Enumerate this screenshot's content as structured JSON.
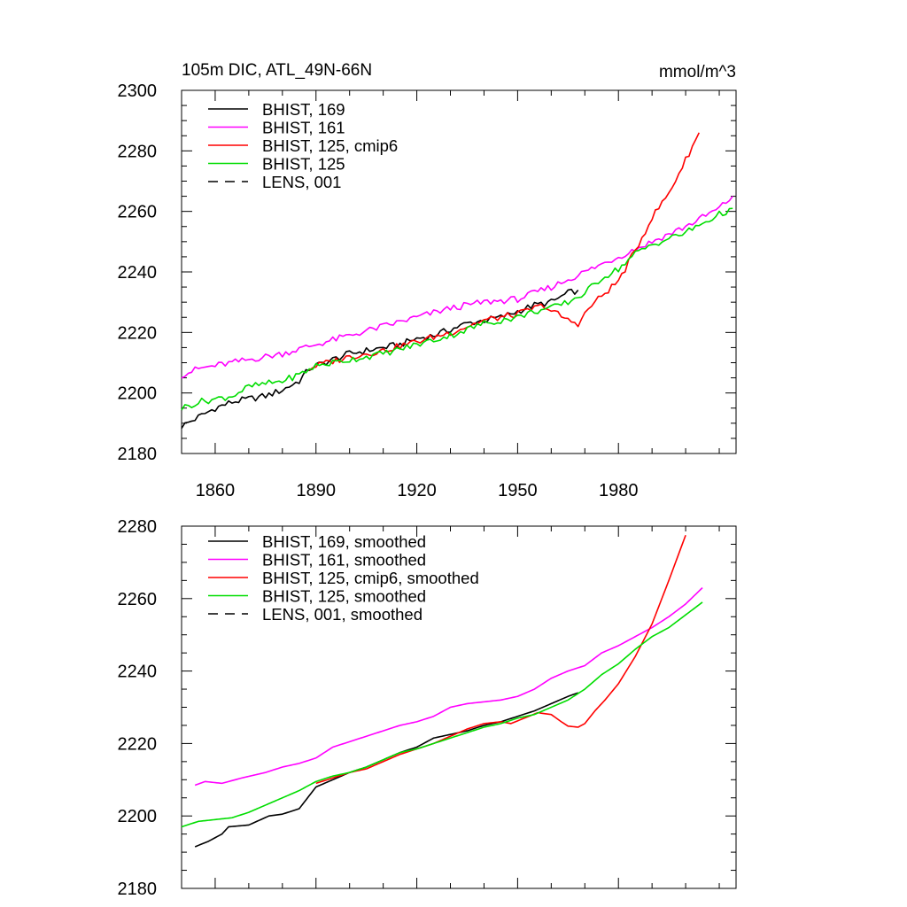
{
  "chart_data": [
    {
      "type": "line",
      "title": "105m DIC, ATL_49N-66N",
      "units": "mmol/m^3",
      "xlabel": "",
      "ylabel": "",
      "xlim": [
        1850,
        2015
      ],
      "ylim": [
        2180,
        2300
      ],
      "xticks": [
        1860,
        1890,
        1920,
        1950,
        1980
      ],
      "yticks": [
        2180,
        2200,
        2220,
        2240,
        2260,
        2280,
        2300
      ],
      "legend_position": "top-left",
      "series": [
        {
          "name": "BHIST, 169",
          "color": "#000000",
          "dash": "solid",
          "style": "noisy",
          "points": [
            [
              1850,
              2189
            ],
            [
              1855,
              2192
            ],
            [
              1860,
              2195
            ],
            [
              1865,
              2197
            ],
            [
              1870,
              2198
            ],
            [
              1875,
              2199
            ],
            [
              1880,
              2201
            ],
            [
              1885,
              2204
            ],
            [
              1888,
              2208
            ],
            [
              1890,
              2209
            ],
            [
              1895,
              2211
            ],
            [
              1900,
              2213
            ],
            [
              1905,
              2214
            ],
            [
              1910,
              2215
            ],
            [
              1915,
              2216
            ],
            [
              1920,
              2218
            ],
            [
              1925,
              2219
            ],
            [
              1930,
              2221
            ],
            [
              1935,
              2223
            ],
            [
              1940,
              2224
            ],
            [
              1945,
              2225
            ],
            [
              1950,
              2227
            ],
            [
              1955,
              2229
            ],
            [
              1960,
              2230
            ],
            [
              1965,
              2233
            ],
            [
              1968,
              2234
            ]
          ]
        },
        {
          "name": "BHIST, 161",
          "color": "#ff00ff",
          "dash": "solid",
          "style": "noisy",
          "points": [
            [
              1850,
              2206
            ],
            [
              1855,
              2208
            ],
            [
              1860,
              2209
            ],
            [
              1870,
              2211
            ],
            [
              1880,
              2213
            ],
            [
              1890,
              2216
            ],
            [
              1900,
              2219
            ],
            [
              1910,
              2222
            ],
            [
              1920,
              2225
            ],
            [
              1930,
              2228
            ],
            [
              1940,
              2230
            ],
            [
              1950,
              2231
            ],
            [
              1960,
              2235
            ],
            [
              1970,
              2240
            ],
            [
              1980,
              2245
            ],
            [
              1990,
              2250
            ],
            [
              2000,
              2255
            ],
            [
              2010,
              2261
            ],
            [
              2014,
              2265
            ]
          ]
        },
        {
          "name": "BHIST, 125, cmip6",
          "color": "#ff0000",
          "dash": "solid",
          "style": "noisy",
          "points": [
            [
              1888,
              2208
            ],
            [
              1890,
              2209
            ],
            [
              1900,
              2212
            ],
            [
              1910,
              2214
            ],
            [
              1920,
              2217
            ],
            [
              1930,
              2220
            ],
            [
              1940,
              2224
            ],
            [
              1950,
              2226
            ],
            [
              1955,
              2228
            ],
            [
              1958,
              2229
            ],
            [
              1960,
              2227
            ],
            [
              1962,
              2226
            ],
            [
              1965,
              2224
            ],
            [
              1968,
              2223
            ],
            [
              1970,
              2226
            ],
            [
              1972,
              2229
            ],
            [
              1975,
              2232
            ],
            [
              1980,
              2237
            ],
            [
              1985,
              2247
            ],
            [
              1990,
              2258
            ],
            [
              1995,
              2266
            ],
            [
              2000,
              2277
            ],
            [
              2004,
              2286
            ]
          ]
        },
        {
          "name": "BHIST, 125",
          "color": "#00dd00",
          "dash": "solid",
          "style": "noisy",
          "points": [
            [
              1850,
              2195
            ],
            [
              1855,
              2197
            ],
            [
              1860,
              2198
            ],
            [
              1865,
              2199
            ],
            [
              1870,
              2202
            ],
            [
              1875,
              2203
            ],
            [
              1880,
              2204
            ],
            [
              1885,
              2206
            ],
            [
              1890,
              2209
            ],
            [
              1900,
              2211
            ],
            [
              1910,
              2213
            ],
            [
              1920,
              2216
            ],
            [
              1930,
              2219
            ],
            [
              1940,
              2223
            ],
            [
              1950,
              2225
            ],
            [
              1955,
              2227
            ],
            [
              1960,
              2228
            ],
            [
              1965,
              2230
            ],
            [
              1970,
              2233
            ],
            [
              1975,
              2238
            ],
            [
              1980,
              2241
            ],
            [
              1985,
              2246
            ],
            [
              1990,
              2249
            ],
            [
              1995,
              2251
            ],
            [
              2000,
              2253
            ],
            [
              2005,
              2256
            ],
            [
              2010,
              2259
            ],
            [
              2014,
              2261
            ]
          ]
        }
      ],
      "legend_entries": [
        {
          "label": "BHIST, 169",
          "color": "#000000",
          "dash": "solid"
        },
        {
          "label": "BHIST, 161",
          "color": "#ff00ff",
          "dash": "solid"
        },
        {
          "label": "BHIST, 125, cmip6",
          "color": "#ff0000",
          "dash": "solid"
        },
        {
          "label": "BHIST, 125",
          "color": "#00dd00",
          "dash": "solid"
        },
        {
          "label": "LENS, 001",
          "color": "#000000",
          "dash": "dashed"
        }
      ]
    },
    {
      "type": "line",
      "title": "",
      "units": "",
      "xlabel": "",
      "ylabel": "",
      "xlim": [
        1850,
        2015
      ],
      "ylim": [
        2180,
        2280
      ],
      "xticks": [
        1860,
        1890,
        1920,
        1950,
        1980
      ],
      "xtick_labels_shown": false,
      "yticks": [
        2180,
        2200,
        2220,
        2240,
        2260,
        2280
      ],
      "legend_position": "top-left",
      "series": [
        {
          "name": "BHIST, 169, smoothed",
          "color": "#000000",
          "dash": "solid",
          "style": "smooth",
          "points": [
            [
              1854,
              2191.5
            ],
            [
              1858,
              2193
            ],
            [
              1862,
              2195
            ],
            [
              1864,
              2197
            ],
            [
              1870,
              2197.5
            ],
            [
              1876,
              2200
            ],
            [
              1880,
              2200.5
            ],
            [
              1885,
              2202
            ],
            [
              1890,
              2208
            ],
            [
              1895,
              2210
            ],
            [
              1900,
              2212
            ],
            [
              1905,
              2213.5
            ],
            [
              1910,
              2215.5
            ],
            [
              1915,
              2217.5
            ],
            [
              1920,
              2219
            ],
            [
              1925,
              2221.5
            ],
            [
              1930,
              2222.5
            ],
            [
              1935,
              2223.5
            ],
            [
              1940,
              2225
            ],
            [
              1945,
              2226
            ],
            [
              1950,
              2227.5
            ],
            [
              1955,
              2229
            ],
            [
              1960,
              2231
            ],
            [
              1965,
              2233
            ],
            [
              1968,
              2234
            ]
          ]
        },
        {
          "name": "BHIST, 161, smoothed",
          "color": "#ff00ff",
          "dash": "solid",
          "style": "smooth",
          "points": [
            [
              1854,
              2208.5
            ],
            [
              1857,
              2209.5
            ],
            [
              1862,
              2209
            ],
            [
              1868,
              2210.5
            ],
            [
              1875,
              2212
            ],
            [
              1880,
              2213.5
            ],
            [
              1885,
              2214.5
            ],
            [
              1890,
              2216
            ],
            [
              1895,
              2219
            ],
            [
              1900,
              2220.5
            ],
            [
              1905,
              2222
            ],
            [
              1910,
              2223.5
            ],
            [
              1915,
              2225
            ],
            [
              1920,
              2226
            ],
            [
              1925,
              2227.5
            ],
            [
              1930,
              2230
            ],
            [
              1935,
              2231
            ],
            [
              1940,
              2231.5
            ],
            [
              1945,
              2232
            ],
            [
              1950,
              2233
            ],
            [
              1955,
              2235
            ],
            [
              1960,
              2238
            ],
            [
              1965,
              2240
            ],
            [
              1970,
              2241.5
            ],
            [
              1975,
              2245
            ],
            [
              1980,
              2247
            ],
            [
              1985,
              2249.5
            ],
            [
              1990,
              2252
            ],
            [
              1995,
              2255
            ],
            [
              2000,
              2258.5
            ],
            [
              2005,
              2263
            ]
          ]
        },
        {
          "name": "BHIST, 125, cmip6, smoothed",
          "color": "#ff0000",
          "dash": "solid",
          "style": "smooth",
          "points": [
            [
              1890,
              2209
            ],
            [
              1895,
              2210.5
            ],
            [
              1900,
              2212
            ],
            [
              1905,
              2213
            ],
            [
              1910,
              2215
            ],
            [
              1915,
              2217
            ],
            [
              1920,
              2218.5
            ],
            [
              1925,
              2220
            ],
            [
              1930,
              2222
            ],
            [
              1935,
              2224
            ],
            [
              1940,
              2225.5
            ],
            [
              1945,
              2226
            ],
            [
              1948,
              2225.5
            ],
            [
              1952,
              2227
            ],
            [
              1956,
              2228.5
            ],
            [
              1960,
              2228
            ],
            [
              1963,
              2226
            ],
            [
              1965,
              2224.8
            ],
            [
              1968,
              2224.5
            ],
            [
              1970,
              2225.5
            ],
            [
              1973,
              2229
            ],
            [
              1976,
              2232
            ],
            [
              1980,
              2236.5
            ],
            [
              1985,
              2244
            ],
            [
              1990,
              2253
            ],
            [
              1995,
              2265
            ],
            [
              2000,
              2277.5
            ]
          ]
        },
        {
          "name": "BHIST, 125, smoothed",
          "color": "#00dd00",
          "dash": "solid",
          "style": "smooth",
          "points": [
            [
              1850,
              2197
            ],
            [
              1855,
              2198.5
            ],
            [
              1860,
              2199
            ],
            [
              1865,
              2199.5
            ],
            [
              1870,
              2201
            ],
            [
              1875,
              2203
            ],
            [
              1880,
              2205
            ],
            [
              1885,
              2207
            ],
            [
              1890,
              2209.5
            ],
            [
              1895,
              2211
            ],
            [
              1900,
              2212
            ],
            [
              1905,
              2213.5
            ],
            [
              1910,
              2215.5
            ],
            [
              1915,
              2217.5
            ],
            [
              1920,
              2218.5
            ],
            [
              1925,
              2220
            ],
            [
              1930,
              2221.5
            ],
            [
              1935,
              2223
            ],
            [
              1940,
              2224.5
            ],
            [
              1945,
              2225.5
            ],
            [
              1950,
              2227
            ],
            [
              1955,
              2228
            ],
            [
              1960,
              2230
            ],
            [
              1965,
              2232
            ],
            [
              1970,
              2235
            ],
            [
              1975,
              2239
            ],
            [
              1980,
              2242
            ],
            [
              1985,
              2246
            ],
            [
              1990,
              2249.5
            ],
            [
              1995,
              2252
            ],
            [
              2000,
              2255.5
            ],
            [
              2005,
              2259
            ]
          ]
        }
      ],
      "legend_entries": [
        {
          "label": "BHIST, 169, smoothed",
          "color": "#000000",
          "dash": "solid"
        },
        {
          "label": "BHIST, 161, smoothed",
          "color": "#ff00ff",
          "dash": "solid"
        },
        {
          "label": "BHIST, 125, cmip6, smoothed",
          "color": "#ff0000",
          "dash": "solid"
        },
        {
          "label": "BHIST, 125, smoothed",
          "color": "#00dd00",
          "dash": "solid"
        },
        {
          "label": "LENS, 001, smoothed",
          "color": "#000000",
          "dash": "dashed"
        }
      ]
    }
  ]
}
